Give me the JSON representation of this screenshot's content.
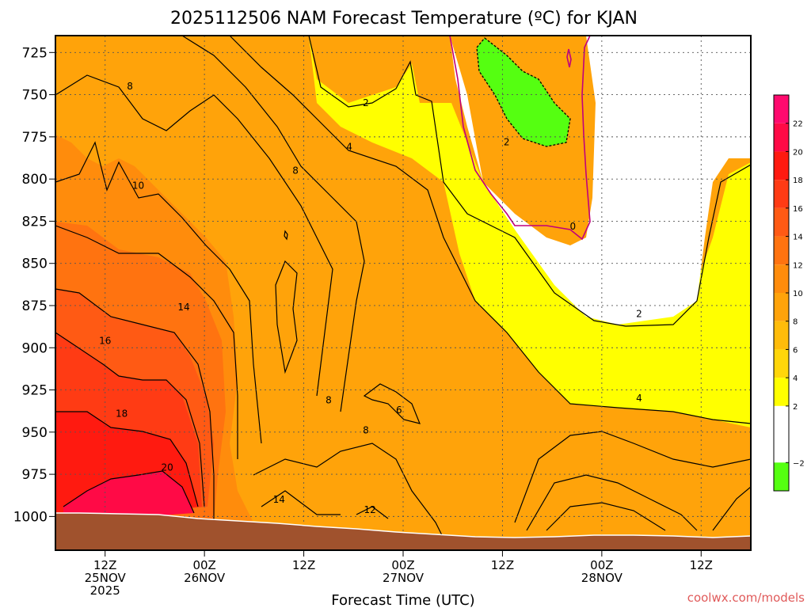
{
  "chart_data": {
    "type": "heatmap",
    "title": "2025112506 NAM Forecast Temperature (ºC) for KJAN",
    "xlabel": "Forecast Time (UTC)",
    "ylabel": "",
    "credit": "coolwx.com/models",
    "x_ticks": [
      {
        "hour": 12,
        "lines": [
          "12Z",
          "25NOV",
          "2025"
        ]
      },
      {
        "hour": 24,
        "lines": [
          "00Z",
          "26NOV"
        ]
      },
      {
        "hour": 36,
        "lines": [
          "12Z"
        ]
      },
      {
        "hour": 48,
        "lines": [
          "00Z",
          "27NOV"
        ]
      },
      {
        "hour": 60,
        "lines": [
          "12Z"
        ]
      },
      {
        "hour": 72,
        "lines": [
          "00Z",
          "28NOV"
        ]
      },
      {
        "hour": 84,
        "lines": [
          "12Z"
        ]
      }
    ],
    "xlim": [
      6,
      90
    ],
    "y_ticks": [
      725,
      750,
      775,
      800,
      825,
      850,
      875,
      900,
      925,
      950,
      975,
      1000
    ],
    "ylim": [
      1020,
      715
    ],
    "colorbar": {
      "ticks": [
        22,
        20,
        18,
        16,
        14,
        12,
        10,
        8,
        6,
        4,
        2,
        -2
      ],
      "bands": [
        {
          "min": 22,
          "max": 24,
          "color": "#ff0a6e"
        },
        {
          "min": 20,
          "max": 22,
          "color": "#ff0a46"
        },
        {
          "min": 18,
          "max": 20,
          "color": "#ff1a10"
        },
        {
          "min": 16,
          "max": 18,
          "color": "#ff3b14"
        },
        {
          "min": 14,
          "max": 16,
          "color": "#ff5a14"
        },
        {
          "min": 12,
          "max": 14,
          "color": "#ff7310"
        },
        {
          "min": 10,
          "max": 12,
          "color": "#ff8c0c"
        },
        {
          "min": 8,
          "max": 10,
          "color": "#ffa30a"
        },
        {
          "min": 6,
          "max": 8,
          "color": "#ffbc0a"
        },
        {
          "min": 4,
          "max": 6,
          "color": "#ffd60a"
        },
        {
          "min": 2,
          "max": 4,
          "color": "#ffff00"
        },
        {
          "min": -2,
          "max": 2,
          "color": "#ffffff"
        },
        {
          "min": -4,
          "max": -2,
          "color": "#55ff11"
        }
      ]
    },
    "ground_color": "#a0522d",
    "contour_labels": [
      {
        "text": "2",
        "hour": 60.5,
        "p": 778
      },
      {
        "text": "2",
        "hour": 43.5,
        "p": 755
      },
      {
        "text": "4",
        "hour": 41.5,
        "p": 781
      },
      {
        "text": "8",
        "hour": 15,
        "p": 745
      },
      {
        "text": "10",
        "hour": 16,
        "p": 804
      },
      {
        "text": "8",
        "hour": 35,
        "p": 795
      },
      {
        "text": "0",
        "hour": 68.5,
        "p": 828
      },
      {
        "text": "2",
        "hour": 76.5,
        "p": 880
      },
      {
        "text": "14",
        "hour": 21.5,
        "p": 876
      },
      {
        "text": "16",
        "hour": 12,
        "p": 896
      },
      {
        "text": "4",
        "hour": 76.5,
        "p": 930
      },
      {
        "text": "8",
        "hour": 39,
        "p": 931
      },
      {
        "text": "6",
        "hour": 47.5,
        "p": 937
      },
      {
        "text": "18",
        "hour": 14,
        "p": 939
      },
      {
        "text": "8",
        "hour": 43.5,
        "p": 949
      },
      {
        "text": "20",
        "hour": 19.5,
        "p": 971
      },
      {
        "text": "14",
        "hour": 33,
        "p": 990
      },
      {
        "text": "12",
        "hour": 44,
        "p": 996
      }
    ]
  }
}
